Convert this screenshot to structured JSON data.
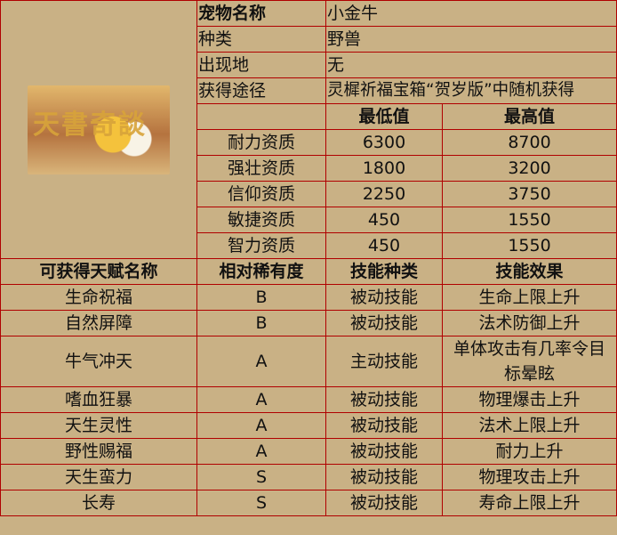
{
  "pet": {
    "name_label": "宠物名称",
    "name": "小金牛",
    "type_label": "种类",
    "type": "野兽",
    "location_label": "出现地",
    "location": "无",
    "source_label": "获得途径",
    "source": "灵樨祈福宝箱“贺岁版”中随机获得",
    "image_logo_text": "天書奇談"
  },
  "stats": {
    "min_header": "最低值",
    "max_header": "最高值",
    "rows": [
      {
        "name": "耐力资质",
        "min": "6300",
        "max": "8700"
      },
      {
        "name": "强壮资质",
        "min": "1800",
        "max": "3200"
      },
      {
        "name": "信仰资质",
        "min": "2250",
        "max": "3750"
      },
      {
        "name": "敏捷资质",
        "min": "450",
        "max": "1550"
      },
      {
        "name": "智力资质",
        "min": "450",
        "max": "1550"
      }
    ]
  },
  "talents": {
    "headers": [
      "可获得天赋名称",
      "相对稀有度",
      "技能种类",
      "技能效果"
    ],
    "rows": [
      {
        "name": "生命祝福",
        "rarity": "B",
        "kind": "被动技能",
        "effect": "生命上限上升"
      },
      {
        "name": "自然屏障",
        "rarity": "B",
        "kind": "被动技能",
        "effect": "法术防御上升"
      },
      {
        "name": "牛气冲天",
        "rarity": "A",
        "kind": "主动技能",
        "effect": "单体攻击有几率令目标晕眩"
      },
      {
        "name": "嗜血狂暴",
        "rarity": "A",
        "kind": "被动技能",
        "effect": "物理爆击上升"
      },
      {
        "name": "天生灵性",
        "rarity": "A",
        "kind": "被动技能",
        "effect": "法术上限上升"
      },
      {
        "name": "野性赐福",
        "rarity": "A",
        "kind": "被动技能",
        "effect": "耐力上升"
      },
      {
        "name": "天生蛮力",
        "rarity": "S",
        "kind": "被动技能",
        "effect": "物理攻击上升"
      },
      {
        "name": "长寿",
        "rarity": "S",
        "kind": "被动技能",
        "effect": "寿命上限上升"
      }
    ]
  },
  "colors": {
    "background": "#c9b185",
    "border": "#b00000"
  }
}
